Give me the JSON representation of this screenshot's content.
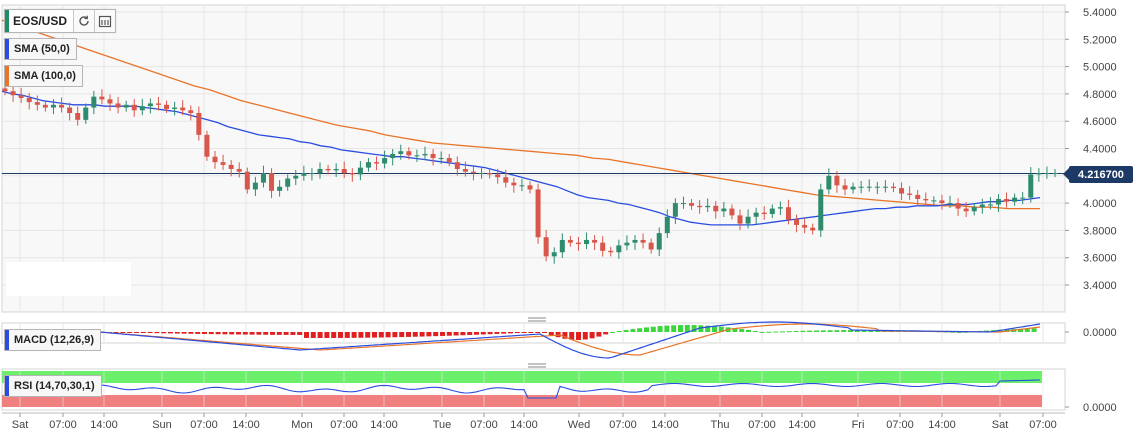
{
  "symbol": {
    "label": "EOS/USD",
    "color": "#1e8c64"
  },
  "toolbar": {
    "refresh_icon": "refresh-icon",
    "calendar_icon": "calendar-icon"
  },
  "legends": {
    "sma50": {
      "label": "SMA (50,0)",
      "color": "#2a4de0"
    },
    "sma100": {
      "label": "SMA (100,0)",
      "color": "#e8742a"
    },
    "macd": {
      "label": "MACD (12,26,9)",
      "color": "#2a4de0"
    },
    "rsi": {
      "label": "RSI (14,70,30,1)",
      "color": "#2a4de0"
    }
  },
  "price_tag": "4.216700",
  "chart_data": {
    "type": "line",
    "title": "EOS/USD",
    "y_ticks": [
      "5.4000",
      "5.2000",
      "5.0000",
      "4.8000",
      "4.6000",
      "4.4000",
      "4.2000",
      "4.0000",
      "3.8000",
      "3.6000",
      "3.4000"
    ],
    "y_tick_values": [
      5.4,
      5.2,
      5.0,
      4.8,
      4.6,
      4.4,
      4.2,
      4.0,
      3.8,
      3.6,
      3.4
    ],
    "ylim": [
      3.3,
      5.45
    ],
    "x_ticks": [
      "Sat",
      "07:00",
      "14:00",
      "Sun",
      "07:00",
      "14:00",
      "Mon",
      "07:00",
      "14:00",
      "Tue",
      "07:00",
      "14:00",
      "Wed",
      "07:00",
      "14:00",
      "Thu",
      "07:00",
      "14:00",
      "Fri",
      "07:00",
      "14:00",
      "Sat",
      "07:00"
    ],
    "current_price": 4.2167,
    "colors": {
      "up": "#2e8b6e",
      "down": "#d9574a",
      "sma50": "#2a4de0",
      "sma100": "#e8742a",
      "grid": "#e6e6e6",
      "panel_bg": "#f8f8f8",
      "price_line": "#1d3a66"
    },
    "candles_close": [
      4.82,
      4.79,
      4.77,
      4.74,
      4.72,
      4.7,
      4.72,
      4.7,
      4.66,
      4.61,
      4.7,
      4.78,
      4.76,
      4.73,
      4.7,
      4.72,
      4.68,
      4.71,
      4.73,
      4.72,
      4.69,
      4.7,
      4.68,
      4.66,
      4.5,
      4.34,
      4.3,
      4.28,
      4.25,
      4.23,
      4.1,
      4.15,
      4.22,
      4.09,
      4.12,
      4.18,
      4.2,
      4.22,
      4.22,
      4.25,
      4.24,
      4.25,
      4.22,
      4.21,
      4.26,
      4.3,
      4.29,
      4.33,
      4.36,
      4.38,
      4.35,
      4.35,
      4.36,
      4.33,
      4.33,
      4.3,
      4.25,
      4.23,
      4.22,
      4.22,
      4.21,
      4.19,
      4.15,
      4.13,
      4.13,
      4.1,
      3.75,
      3.61,
      3.64,
      3.73,
      3.71,
      3.7,
      3.73,
      3.71,
      3.65,
      3.64,
      3.69,
      3.71,
      3.73,
      3.71,
      3.66,
      3.78,
      3.9,
      4.0,
      4.0,
      3.98,
      3.97,
      3.98,
      3.94,
      3.96,
      3.91,
      3.85,
      3.9,
      3.93,
      3.92,
      3.96,
      3.97,
      3.88,
      3.84,
      3.82,
      3.8,
      4.1,
      4.2,
      4.13,
      4.1,
      4.12,
      4.12,
      4.12,
      4.12,
      4.12,
      4.11,
      4.07,
      4.06,
      4.03,
      4.02,
      4.02,
      4.0,
      4.0,
      3.96,
      3.94,
      3.97,
      3.99,
      3.99,
      4.03,
      4.01,
      4.04,
      4.04,
      4.21,
      4.22,
      4.22,
      4.22
    ],
    "series": [
      {
        "name": "SMA (50,0)",
        "values": [
          4.82,
          4.8,
          4.79,
          4.77,
          4.75,
          4.74,
          4.73,
          4.72,
          4.72,
          4.72,
          4.71,
          4.71,
          4.71,
          4.71,
          4.7,
          4.69,
          4.68,
          4.67,
          4.65,
          4.63,
          4.61,
          4.59,
          4.56,
          4.54,
          4.52,
          4.5,
          4.49,
          4.48,
          4.47,
          4.45,
          4.44,
          4.42,
          4.41,
          4.39,
          4.38,
          4.37,
          4.36,
          4.35,
          4.34,
          4.34,
          4.33,
          4.32,
          4.31,
          4.3,
          4.29,
          4.28,
          4.27,
          4.26,
          4.24,
          4.22,
          4.2,
          4.18,
          4.16,
          4.14,
          4.12,
          4.09,
          4.06,
          4.04,
          4.03,
          4.02,
          4.0,
          3.99,
          3.97,
          3.95,
          3.93,
          3.9,
          3.88,
          3.86,
          3.85,
          3.84,
          3.84,
          3.84,
          3.84,
          3.84,
          3.85,
          3.86,
          3.87,
          3.88,
          3.89,
          3.9,
          3.91,
          3.92,
          3.93,
          3.94,
          3.95,
          3.96,
          3.96,
          3.97,
          3.97,
          3.98,
          3.98,
          3.98,
          3.99,
          3.99,
          3.99,
          4.0,
          4.01,
          4.01,
          4.02,
          4.02,
          4.03,
          4.04
        ]
      },
      {
        "name": "SMA (100,0)",
        "values": [
          5.34,
          5.3,
          5.26,
          5.22,
          5.18,
          5.14,
          5.1,
          5.06,
          5.02,
          4.98,
          4.94,
          4.9,
          4.86,
          4.83,
          4.79,
          4.75,
          4.72,
          4.69,
          4.66,
          4.63,
          4.6,
          4.57,
          4.55,
          4.53,
          4.5,
          4.48,
          4.46,
          4.44,
          4.43,
          4.42,
          4.41,
          4.4,
          4.39,
          4.38,
          4.37,
          4.36,
          4.35,
          4.33,
          4.32,
          4.3,
          4.28,
          4.26,
          4.24,
          4.22,
          4.2,
          4.18,
          4.16,
          4.14,
          4.12,
          4.1,
          4.08,
          4.06,
          4.05,
          4.04,
          4.03,
          4.02,
          4.01,
          4.0,
          3.99,
          3.98,
          3.98,
          3.97,
          3.97,
          3.96,
          3.96,
          3.96
        ]
      }
    ]
  },
  "macd_data": {
    "y_tick": "0.0000",
    "colors": {
      "pos": "#3dd43d",
      "neg": "#e02020",
      "macd": "#2a4de0",
      "signal": "#e8742a"
    }
  },
  "rsi_data": {
    "y_tick": "0.0000",
    "colors": {
      "upper": "#6cf06c",
      "lower": "#f08080",
      "line": "#2a4de0"
    }
  }
}
